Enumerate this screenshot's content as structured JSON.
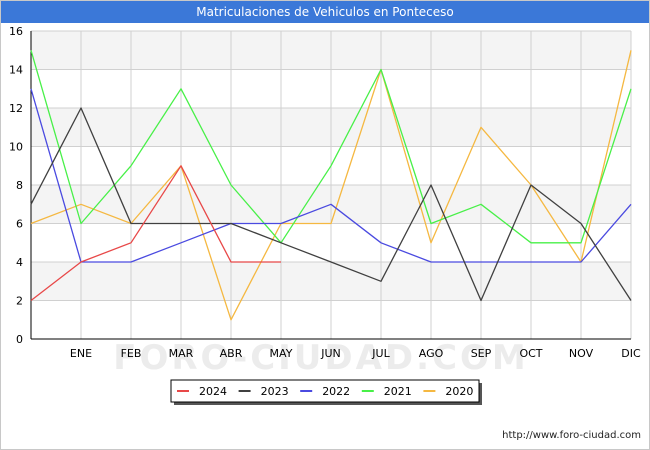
{
  "page": {
    "title": "Matriculaciones de Vehiculos en Ponteceso",
    "source_url": "http://www.foro-ciudad.com"
  },
  "watermark": "FORO-CIUDAD.COM",
  "colors": {
    "title_bar": "#3b78d8",
    "grid": "#d0d0d0",
    "band": "#f4f4f4",
    "axis": "#000000"
  },
  "chart_data": {
    "type": "line",
    "x": [
      "",
      "ENE",
      "FEB",
      "MAR",
      "ABR",
      "MAY",
      "JUN",
      "JUL",
      "AGO",
      "SEP",
      "OCT",
      "NOV",
      "DIC"
    ],
    "ylim": [
      0,
      16
    ],
    "yticks": [
      0,
      2,
      4,
      6,
      8,
      10,
      12,
      14,
      16
    ],
    "grid": true,
    "legend_position": "bottom",
    "series": [
      {
        "name": "2024",
        "color": "#e84848",
        "values": [
          2,
          4,
          5,
          9,
          4,
          4,
          null,
          null,
          null,
          null,
          null,
          null,
          null
        ]
      },
      {
        "name": "2023",
        "color": "#404040",
        "values": [
          7,
          12,
          6,
          6,
          6,
          5,
          4,
          3,
          8,
          2,
          8,
          6,
          2
        ]
      },
      {
        "name": "2022",
        "color": "#4a4ae0",
        "values": [
          13,
          4,
          4,
          5,
          6,
          6,
          7,
          5,
          4,
          4,
          4,
          4,
          7
        ]
      },
      {
        "name": "2021",
        "color": "#48f048",
        "values": [
          15,
          6,
          9,
          13,
          8,
          5,
          9,
          14,
          6,
          7,
          5,
          5,
          13
        ]
      },
      {
        "name": "2020",
        "color": "#f5b841",
        "values": [
          6,
          7,
          6,
          9,
          1,
          6,
          6,
          14,
          5,
          11,
          8,
          4,
          15
        ]
      }
    ]
  }
}
